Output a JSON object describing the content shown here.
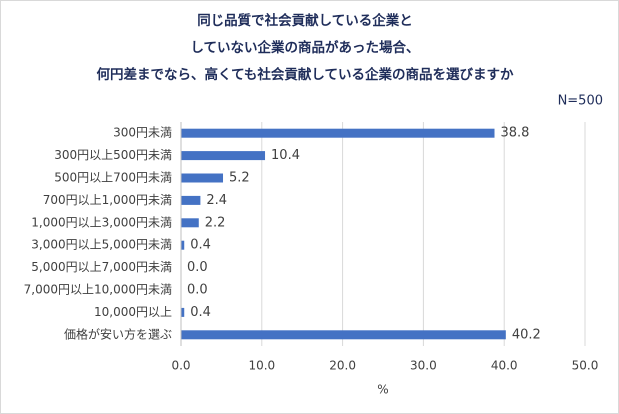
{
  "chart_data": {
    "type": "bar",
    "orientation": "horizontal",
    "title": [
      "同じ品質で社会貢献している企業と",
      "していない企業の商品があった場合、",
      "何円差までなら、高くても社会貢献している企業の商品を選びますか"
    ],
    "subtitle": "N=500",
    "xlabel": "%",
    "categories": [
      "300円未満",
      "300円以上500円未満",
      "500円以上700円未満",
      "700円以上1,000円未満",
      "1,000円以上3,000円未満",
      "3,000円以上5,000円未満",
      "5,000円以上7,000円未満",
      "7,000円以上10,000円未満",
      "10,000円以上",
      "価格が安い方を選ぶ"
    ],
    "values": [
      38.8,
      10.4,
      5.2,
      2.4,
      2.2,
      0.4,
      0,
      0,
      0.4,
      40.2
    ],
    "value_labels": [
      "38.8",
      "10.4",
      "5.2",
      "2.4",
      "2.2",
      "0.4",
      "0.0",
      "0.0",
      "0.4",
      "40.2"
    ],
    "color": "#4472c4",
    "xlim": [
      0,
      50
    ],
    "xticks": [
      {
        "value": 0,
        "label": "0.0"
      },
      {
        "value": 10,
        "label": "10.0"
      },
      {
        "value": 20,
        "label": "20.0"
      },
      {
        "value": 30,
        "label": "30.0"
      },
      {
        "value": 40,
        "label": "40.0"
      },
      {
        "value": 50,
        "label": "50.0"
      }
    ],
    "grid": true
  }
}
